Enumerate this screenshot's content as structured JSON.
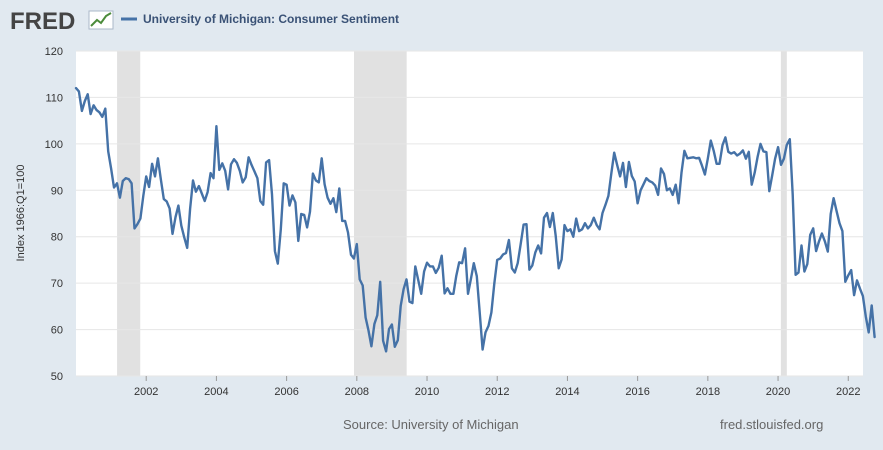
{
  "header": {
    "logo_text": "FRED",
    "legend_label": "University of Michigan: Consumer Sentiment",
    "series_color": "#4572a7"
  },
  "footer": {
    "source": "Source: University of Michigan",
    "site": "fred.stlouisfed.org"
  },
  "chart_data": {
    "type": "line",
    "title": "",
    "xlabel": "",
    "ylabel": "Index 1966:Q1=100",
    "ylim": [
      50,
      120
    ],
    "xlim": [
      2000.0,
      2022.42
    ],
    "yticks": [
      50,
      60,
      70,
      80,
      90,
      100,
      110,
      120
    ],
    "xticks": [
      2002,
      2004,
      2006,
      2008,
      2010,
      2012,
      2014,
      2016,
      2018,
      2020,
      2022
    ],
    "xtick_labels": [
      "2002",
      "2004",
      "2006",
      "2008",
      "2010",
      "2012",
      "2014",
      "2016",
      "2018",
      "2020",
      "2022"
    ],
    "grid": "horizontal",
    "recessions": [
      [
        2001.17,
        2001.83
      ],
      [
        2007.92,
        2009.42
      ],
      [
        2020.08,
        2020.25
      ]
    ],
    "series": [
      {
        "name": "University of Michigan: Consumer Sentiment",
        "color": "#4572a7",
        "x_start": 2000.0,
        "x_step_months": 1,
        "values": [
          112.0,
          111.3,
          107.1,
          109.2,
          110.7,
          106.4,
          108.3,
          107.3,
          106.8,
          105.8,
          107.6,
          98.4,
          94.7,
          90.6,
          91.5,
          88.4,
          92.0,
          92.6,
          92.4,
          91.5,
          81.8,
          82.7,
          83.9,
          88.8,
          93.0,
          90.7,
          95.7,
          93.0,
          96.9,
          92.4,
          88.1,
          87.6,
          86.1,
          80.6,
          84.2,
          86.7,
          82.4,
          79.9,
          77.6,
          86.0,
          92.1,
          89.7,
          90.9,
          89.3,
          87.7,
          89.6,
          93.7,
          92.6,
          103.8,
          94.4,
          95.8,
          94.2,
          90.2,
          95.6,
          96.7,
          95.9,
          94.2,
          91.7,
          92.8,
          97.1,
          95.5,
          94.1,
          92.6,
          87.7,
          86.9,
          96.0,
          96.5,
          89.1,
          76.9,
          74.2,
          81.6,
          91.5,
          91.2,
          86.7,
          88.9,
          87.4,
          79.1,
          84.9,
          84.7,
          82.0,
          85.4,
          93.6,
          92.1,
          91.7,
          96.9,
          91.3,
          88.4,
          87.1,
          88.3,
          85.3,
          90.4,
          83.4,
          83.4,
          80.9,
          76.1,
          75.3,
          78.4,
          70.8,
          69.5,
          62.6,
          59.8,
          56.4,
          61.2,
          63.1,
          70.3,
          57.6,
          55.3,
          60.1,
          61.1,
          56.3,
          57.7,
          65.1,
          68.7,
          70.8,
          66.0,
          65.7,
          73.6,
          70.6,
          67.7,
          72.5,
          74.4,
          73.6,
          73.6,
          72.2,
          73.3,
          75.9,
          67.8,
          68.9,
          67.7,
          67.7,
          71.6,
          74.5,
          74.3,
          77.5,
          67.7,
          70.9,
          74.3,
          71.5,
          63.7,
          55.7,
          59.4,
          60.8,
          63.7,
          69.9,
          75.0,
          75.3,
          76.2,
          76.5,
          79.3,
          73.2,
          72.3,
          74.3,
          78.3,
          82.6,
          82.7,
          72.9,
          73.8,
          76.6,
          78.1,
          76.4,
          84.1,
          85.1,
          82.1,
          85.1,
          80.2,
          73.2,
          75.1,
          82.5,
          81.2,
          81.6,
          80.0,
          83.9,
          81.2,
          81.6,
          82.9,
          81.8,
          82.5,
          84.1,
          82.5,
          81.6,
          85.1,
          86.9,
          88.8,
          93.6,
          98.1,
          95.4,
          93.0,
          95.9,
          90.7,
          96.1,
          93.1,
          91.9,
          87.2,
          90.0,
          91.3,
          92.6,
          92.0,
          91.7,
          91.0,
          89.0,
          94.7,
          93.5,
          90.0,
          90.4,
          89.0,
          91.2,
          87.2,
          93.8,
          98.5,
          96.9,
          97.0,
          97.1,
          96.9,
          97.0,
          95.3,
          93.4,
          96.8,
          100.7,
          98.5,
          95.7,
          95.7,
          99.7,
          101.4,
          98.3,
          97.9,
          98.2,
          97.5,
          97.9,
          98.6,
          96.8,
          98.3,
          91.2,
          93.8,
          97.2,
          100.0,
          98.4,
          98.2,
          89.8,
          93.2,
          96.8,
          99.3,
          95.5,
          96.8,
          99.8,
          101.0,
          89.1,
          71.8,
          72.3,
          78.1,
          72.5,
          74.1,
          80.4,
          81.8,
          76.9,
          79.0,
          80.7,
          79.0,
          76.8,
          84.9,
          88.3,
          85.5,
          82.9,
          81.2,
          70.3,
          71.7,
          72.8,
          67.4,
          70.6,
          68.8,
          67.2,
          62.8,
          59.4,
          65.2,
          58.4
        ]
      }
    ]
  }
}
